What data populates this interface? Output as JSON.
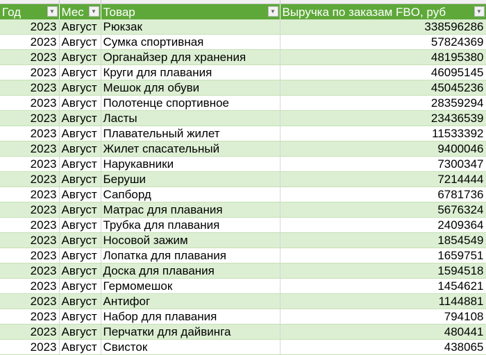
{
  "headers": [
    "Год",
    "Мес",
    "Товар",
    "Выручка по заказам FBO, руб"
  ],
  "colors": {
    "header": "#5ea83a",
    "band": "#dcefd3"
  },
  "filter_icon": "dropdown-arrow-icon",
  "rows": [
    [
      "2023",
      "Август",
      "Рюкзак",
      "338596286"
    ],
    [
      "2023",
      "Август",
      "Сумка спортивная",
      "57824369"
    ],
    [
      "2023",
      "Август",
      "Органайзер для хранения",
      "48195380"
    ],
    [
      "2023",
      "Август",
      "Круги для плавания",
      "46095145"
    ],
    [
      "2023",
      "Август",
      "Мешок для обуви",
      "45045236"
    ],
    [
      "2023",
      "Август",
      "Полотенце спортивное",
      "28359294"
    ],
    [
      "2023",
      "Август",
      "Ласты",
      "23436539"
    ],
    [
      "2023",
      "Август",
      "Плавательный жилет",
      "11533392"
    ],
    [
      "2023",
      "Август",
      "Жилет спасательный",
      "9400046"
    ],
    [
      "2023",
      "Август",
      "Нарукавники",
      "7300347"
    ],
    [
      "2023",
      "Август",
      "Беруши",
      "7214444"
    ],
    [
      "2023",
      "Август",
      "Сапборд",
      "6781736"
    ],
    [
      "2023",
      "Август",
      "Матрас для плавания",
      "5676324"
    ],
    [
      "2023",
      "Август",
      "Трубка для плавания",
      "2409364"
    ],
    [
      "2023",
      "Август",
      "Носовой зажим",
      "1854549"
    ],
    [
      "2023",
      "Август",
      "Лопатка для плавания",
      "1659751"
    ],
    [
      "2023",
      "Август",
      "Доска для плавания",
      "1594518"
    ],
    [
      "2023",
      "Август",
      "Гермомешок",
      "1454621"
    ],
    [
      "2023",
      "Август",
      "Антифог",
      "1144881"
    ],
    [
      "2023",
      "Август",
      "Набор для плавания",
      "794108"
    ],
    [
      "2023",
      "Август",
      "Перчатки для дайвинга",
      "480441"
    ],
    [
      "2023",
      "Август",
      "Свисток",
      "438065"
    ]
  ]
}
